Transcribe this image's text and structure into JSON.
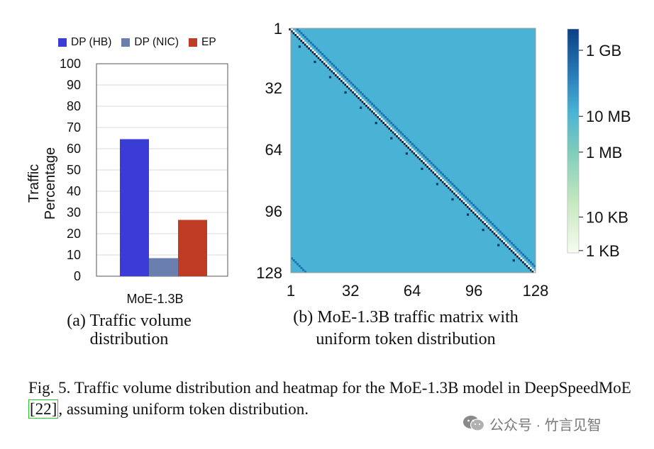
{
  "chart_data": [
    {
      "type": "bar",
      "categories": [
        "MoE-1.3B"
      ],
      "series": [
        {
          "name": "DP (HB)",
          "values": [
            64.5
          ],
          "color": "#3b3bd6"
        },
        {
          "name": "DP (NIC)",
          "values": [
            8.5
          ],
          "color": "#6b7fae"
        },
        {
          "name": "EP",
          "values": [
            26.5
          ],
          "color": "#be3c24"
        }
      ],
      "ylabel": "Traffic Percentage",
      "xlabel": "",
      "ylim": [
        0,
        100
      ],
      "yticks": [
        "0",
        "10",
        "20",
        "30",
        "40",
        "50",
        "60",
        "70",
        "80",
        "90",
        "100"
      ],
      "legend": "top",
      "grid": true
    },
    {
      "type": "heatmap",
      "x_range": [
        1,
        128
      ],
      "y_range": [
        1,
        128
      ],
      "xticks": [
        "1",
        "32",
        "64",
        "96",
        "128"
      ],
      "yticks": [
        "1",
        "32",
        "64",
        "96",
        "128"
      ],
      "background_value": "10 MB",
      "background_color": "#4ab3d5",
      "diagonal_color": "#ffffff",
      "offdiag_color": "#1d6fae",
      "colorbar_ticks": [
        "1 GB",
        "10 MB",
        "1 MB",
        "10 KB",
        "1 KB"
      ],
      "colorbar_colors": [
        "#0a3f86",
        "#2a82bd",
        "#4ab3d5",
        "#7fcdbb",
        "#c7e9c0",
        "#f7fcf0"
      ]
    }
  ],
  "captions": {
    "a_line1": "(a) Traffic volume",
    "a_line2": "distribution",
    "b_line1": "(b) MoE-1.3B traffic matrix with",
    "b_line2": "uniform token distribution"
  },
  "figure_caption": {
    "before": "Fig. 5.  Traffic volume distribution and heatmap for the MoE-1.3B model in DeepSpeedMoE ",
    "citation": "[22]",
    "after": ", assuming uniform token distribution."
  },
  "watermark": {
    "text": "公众号 · 竹言见智",
    "icon": "wechat-icon"
  }
}
